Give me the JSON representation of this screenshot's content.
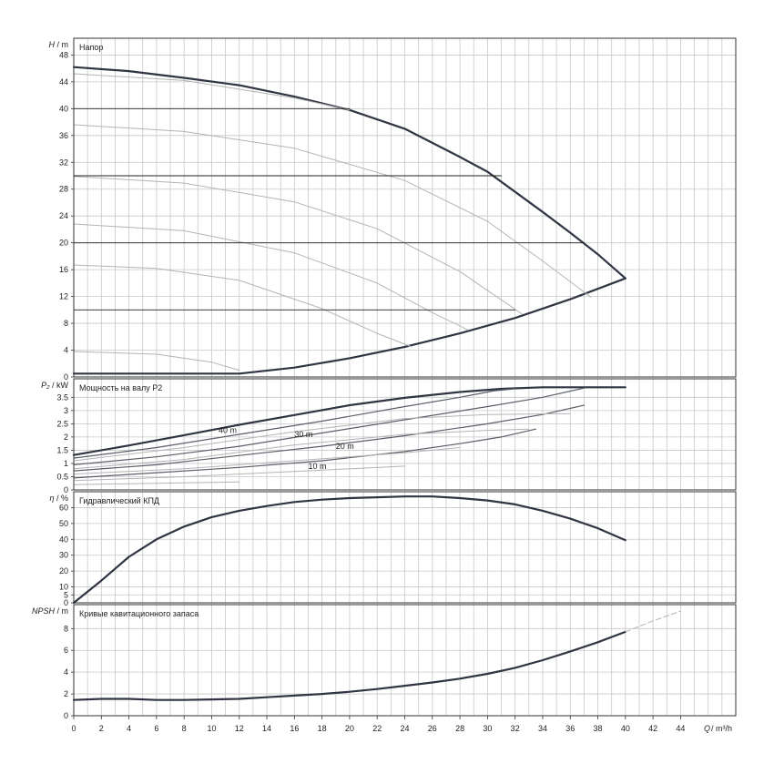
{
  "colors": {
    "grid": "#c8c8c8",
    "frame": "#333333",
    "main_curve": "#2f3542",
    "thin_curve": "#b4b4b4",
    "mid_curve": "#5a5f69",
    "text": "#222222"
  },
  "x_axis": {
    "label_q": "Q",
    "label_unit": " / m³/h",
    "ticks": [
      0,
      2,
      4,
      6,
      8,
      10,
      12,
      14,
      16,
      18,
      20,
      22,
      24,
      26,
      28,
      30,
      32,
      34,
      36,
      38,
      40,
      42,
      44
    ],
    "range": [
      0,
      48
    ]
  },
  "chart_data": [
    {
      "type": "line",
      "panel": "head",
      "title": "Напор",
      "ylabel_sym": "H",
      "ylabel_unit": " / m",
      "yticks": [
        "0",
        "4",
        "8",
        "12",
        "16",
        "20",
        "24",
        "28",
        "32",
        "36",
        "40",
        "44",
        "48"
      ],
      "ylim": [
        0,
        50.5
      ],
      "series": [
        {
          "role": "main",
          "points": [
            [
              0,
              46.2
            ],
            [
              4,
              45.6
            ],
            [
              8,
              44.6
            ],
            [
              12,
              43.5
            ],
            [
              16,
              41.8
            ],
            [
              20,
              39.8
            ],
            [
              24,
              37.0
            ],
            [
              28,
              32.8
            ],
            [
              30,
              30.6
            ],
            [
              32,
              27.6
            ],
            [
              34,
              24.6
            ],
            [
              36,
              21.5
            ],
            [
              38,
              18.3
            ],
            [
              40,
              14.7
            ]
          ]
        },
        {
          "role": "main",
          "points": [
            [
              0,
              0.5
            ],
            [
              12,
              0.5
            ],
            [
              16,
              1.4
            ],
            [
              20,
              2.8
            ],
            [
              24,
              4.5
            ],
            [
              28,
              6.5
            ],
            [
              32,
              8.8
            ],
            [
              36,
              11.6
            ],
            [
              40,
              14.7
            ]
          ]
        },
        {
          "role": "thin",
          "points": [
            [
              0,
              45.2
            ],
            [
              8,
              44.2
            ],
            [
              16,
              41.6
            ],
            [
              20,
              39.8
            ]
          ]
        },
        {
          "role": "thin",
          "points": [
            [
              0,
              37.6
            ],
            [
              8,
              36.6
            ],
            [
              16,
              34.1
            ],
            [
              24,
              29.3
            ],
            [
              30,
              23.2
            ],
            [
              34,
              17.3
            ],
            [
              37.5,
              11.9
            ]
          ]
        },
        {
          "role": "thin",
          "points": [
            [
              0,
              29.9
            ],
            [
              8,
              28.9
            ],
            [
              16,
              26.1
            ],
            [
              22,
              22.1
            ],
            [
              28,
              15.7
            ],
            [
              32.5,
              9.4
            ]
          ]
        },
        {
          "role": "thin",
          "points": [
            [
              0,
              22.8
            ],
            [
              8,
              21.8
            ],
            [
              16,
              18.5
            ],
            [
              22,
              14.0
            ],
            [
              26,
              9.6
            ],
            [
              28.6,
              7.0
            ]
          ]
        },
        {
          "role": "thin",
          "points": [
            [
              0,
              16.7
            ],
            [
              6,
              16.2
            ],
            [
              12,
              14.4
            ],
            [
              18,
              10.2
            ],
            [
              22,
              6.5
            ],
            [
              24.5,
              4.5
            ]
          ]
        },
        {
          "role": "thin",
          "points": [
            [
              0,
              3.8
            ],
            [
              6,
              3.4
            ],
            [
              10,
              2.2
            ],
            [
              12,
              1.0
            ]
          ]
        },
        {
          "role": "op",
          "points": [
            [
              0,
              40
            ],
            [
              20,
              40
            ]
          ]
        },
        {
          "role": "op",
          "points": [
            [
              0,
              30
            ],
            [
              31,
              30
            ]
          ]
        },
        {
          "role": "op",
          "points": [
            [
              0,
              20
            ],
            [
              37,
              20
            ]
          ]
        },
        {
          "role": "op",
          "points": [
            [
              0,
              10
            ],
            [
              32,
              10
            ]
          ]
        }
      ]
    },
    {
      "type": "line",
      "panel": "power",
      "title": "Мощность на валу P2",
      "ylabel_sym": "P₂",
      "ylabel_unit": " / kW",
      "yticks": [
        "0",
        "0.5",
        "1",
        "1.5",
        "2",
        "2.5",
        "3",
        "3.5"
      ],
      "ylim": [
        0,
        4.2
      ],
      "annotations": [
        {
          "text": "40 m",
          "x": 10.5,
          "y": 2.15
        },
        {
          "text": "30 m",
          "x": 16,
          "y": 2.0
        },
        {
          "text": "20 m",
          "x": 19,
          "y": 1.55
        },
        {
          "text": "10 m",
          "x": 17,
          "y": 0.8
        }
      ],
      "series": [
        {
          "role": "main",
          "points": [
            [
              0,
              1.32
            ],
            [
              4,
              1.68
            ],
            [
              8,
              2.07
            ],
            [
              12,
              2.46
            ],
            [
              16,
              2.83
            ],
            [
              20,
              3.2
            ],
            [
              24,
              3.48
            ],
            [
              28,
              3.7
            ],
            [
              31,
              3.82
            ],
            [
              34,
              3.88
            ],
            [
              40,
              3.88
            ]
          ]
        },
        {
          "role": "mid",
          "points": [
            [
              0,
              1.2
            ],
            [
              6,
              1.6
            ],
            [
              12,
              2.1
            ],
            [
              18,
              2.6
            ],
            [
              24,
              3.15
            ],
            [
              28,
              3.5
            ],
            [
              30.5,
              3.75
            ],
            [
              32,
              3.82
            ]
          ]
        },
        {
          "role": "mid",
          "points": [
            [
              0,
              0.95
            ],
            [
              6,
              1.25
            ],
            [
              12,
              1.65
            ],
            [
              18,
              2.15
            ],
            [
              24,
              2.65
            ],
            [
              30,
              3.15
            ],
            [
              34,
              3.5
            ],
            [
              37,
              3.85
            ]
          ]
        },
        {
          "role": "mid",
          "points": [
            [
              0,
              0.72
            ],
            [
              6,
              0.95
            ],
            [
              12,
              1.3
            ],
            [
              18,
              1.65
            ],
            [
              24,
              2.05
            ],
            [
              30,
              2.5
            ],
            [
              34,
              2.85
            ],
            [
              37,
              3.2
            ]
          ]
        },
        {
          "role": "mid",
          "points": [
            [
              0,
              0.45
            ],
            [
              6,
              0.65
            ],
            [
              12,
              0.85
            ],
            [
              18,
              1.1
            ],
            [
              24,
              1.45
            ],
            [
              28,
              1.75
            ],
            [
              31,
              2.0
            ],
            [
              33.5,
              2.3
            ]
          ]
        },
        {
          "role": "thin",
          "points": [
            [
              0,
              1.1
            ],
            [
              8,
              1.6
            ],
            [
              16,
              2.2
            ],
            [
              24,
              2.7
            ],
            [
              30,
              2.85
            ],
            [
              36,
              2.88
            ]
          ]
        },
        {
          "role": "thin",
          "points": [
            [
              0,
              0.8
            ],
            [
              8,
              1.15
            ],
            [
              16,
              1.7
            ],
            [
              24,
              2.1
            ],
            [
              30,
              2.25
            ],
            [
              33,
              2.3
            ]
          ]
        },
        {
          "role": "thin",
          "points": [
            [
              0,
              0.6
            ],
            [
              8,
              0.8
            ],
            [
              16,
              1.1
            ],
            [
              24,
              1.4
            ],
            [
              28,
              1.6
            ]
          ]
        },
        {
          "role": "thin",
          "points": [
            [
              0,
              0.35
            ],
            [
              8,
              0.5
            ],
            [
              16,
              0.7
            ],
            [
              24,
              0.9
            ]
          ]
        },
        {
          "role": "thin",
          "points": [
            [
              0,
              0.2
            ],
            [
              6,
              0.25
            ],
            [
              12,
              0.3
            ]
          ]
        }
      ]
    },
    {
      "type": "line",
      "panel": "efficiency",
      "title": "Гидравлический КПД",
      "ylabel_sym": "η",
      "ylabel_unit": " / %",
      "yticks": [
        "0",
        "5",
        "10",
        "20",
        "30",
        "40",
        "50",
        "60"
      ],
      "ytick_values": [
        0,
        5,
        10,
        20,
        30,
        40,
        50,
        60
      ],
      "ylim": [
        0,
        70
      ],
      "series": [
        {
          "role": "main",
          "points": [
            [
              0,
              0
            ],
            [
              2,
              14
            ],
            [
              4,
              29
            ],
            [
              6,
              40
            ],
            [
              8,
              48
            ],
            [
              10,
              54
            ],
            [
              12,
              58
            ],
            [
              14,
              61
            ],
            [
              16,
              63.5
            ],
            [
              18,
              65
            ],
            [
              20,
              66
            ],
            [
              22,
              66.5
            ],
            [
              24,
              67
            ],
            [
              26,
              67
            ],
            [
              28,
              66
            ],
            [
              30,
              64.5
            ],
            [
              32,
              62
            ],
            [
              34,
              58
            ],
            [
              36,
              53
            ],
            [
              38,
              47
            ],
            [
              40,
              39.5
            ]
          ]
        }
      ]
    },
    {
      "type": "line",
      "panel": "npsh",
      "title": "Кривые кавитационного запаса",
      "ylabel_sym": "NPSH",
      "ylabel_unit": " / m",
      "yticks": [
        "0",
        "2",
        "4",
        "6",
        "8"
      ],
      "ylim": [
        0,
        10.2
      ],
      "series": [
        {
          "role": "main",
          "points": [
            [
              0,
              1.45
            ],
            [
              2,
              1.55
            ],
            [
              4,
              1.55
            ],
            [
              6,
              1.45
            ],
            [
              8,
              1.45
            ],
            [
              10,
              1.5
            ],
            [
              12,
              1.55
            ],
            [
              14,
              1.7
            ],
            [
              16,
              1.85
            ],
            [
              18,
              2.0
            ],
            [
              20,
              2.2
            ],
            [
              22,
              2.45
            ],
            [
              24,
              2.75
            ],
            [
              26,
              3.05
            ],
            [
              28,
              3.4
            ],
            [
              30,
              3.85
            ],
            [
              32,
              4.4
            ],
            [
              34,
              5.1
            ],
            [
              36,
              5.9
            ],
            [
              38,
              6.75
            ],
            [
              40,
              7.7
            ]
          ]
        },
        {
          "role": "thin",
          "points": [
            [
              40,
              7.7
            ],
            [
              42,
              8.7
            ],
            [
              44,
              9.6
            ]
          ]
        }
      ]
    }
  ]
}
